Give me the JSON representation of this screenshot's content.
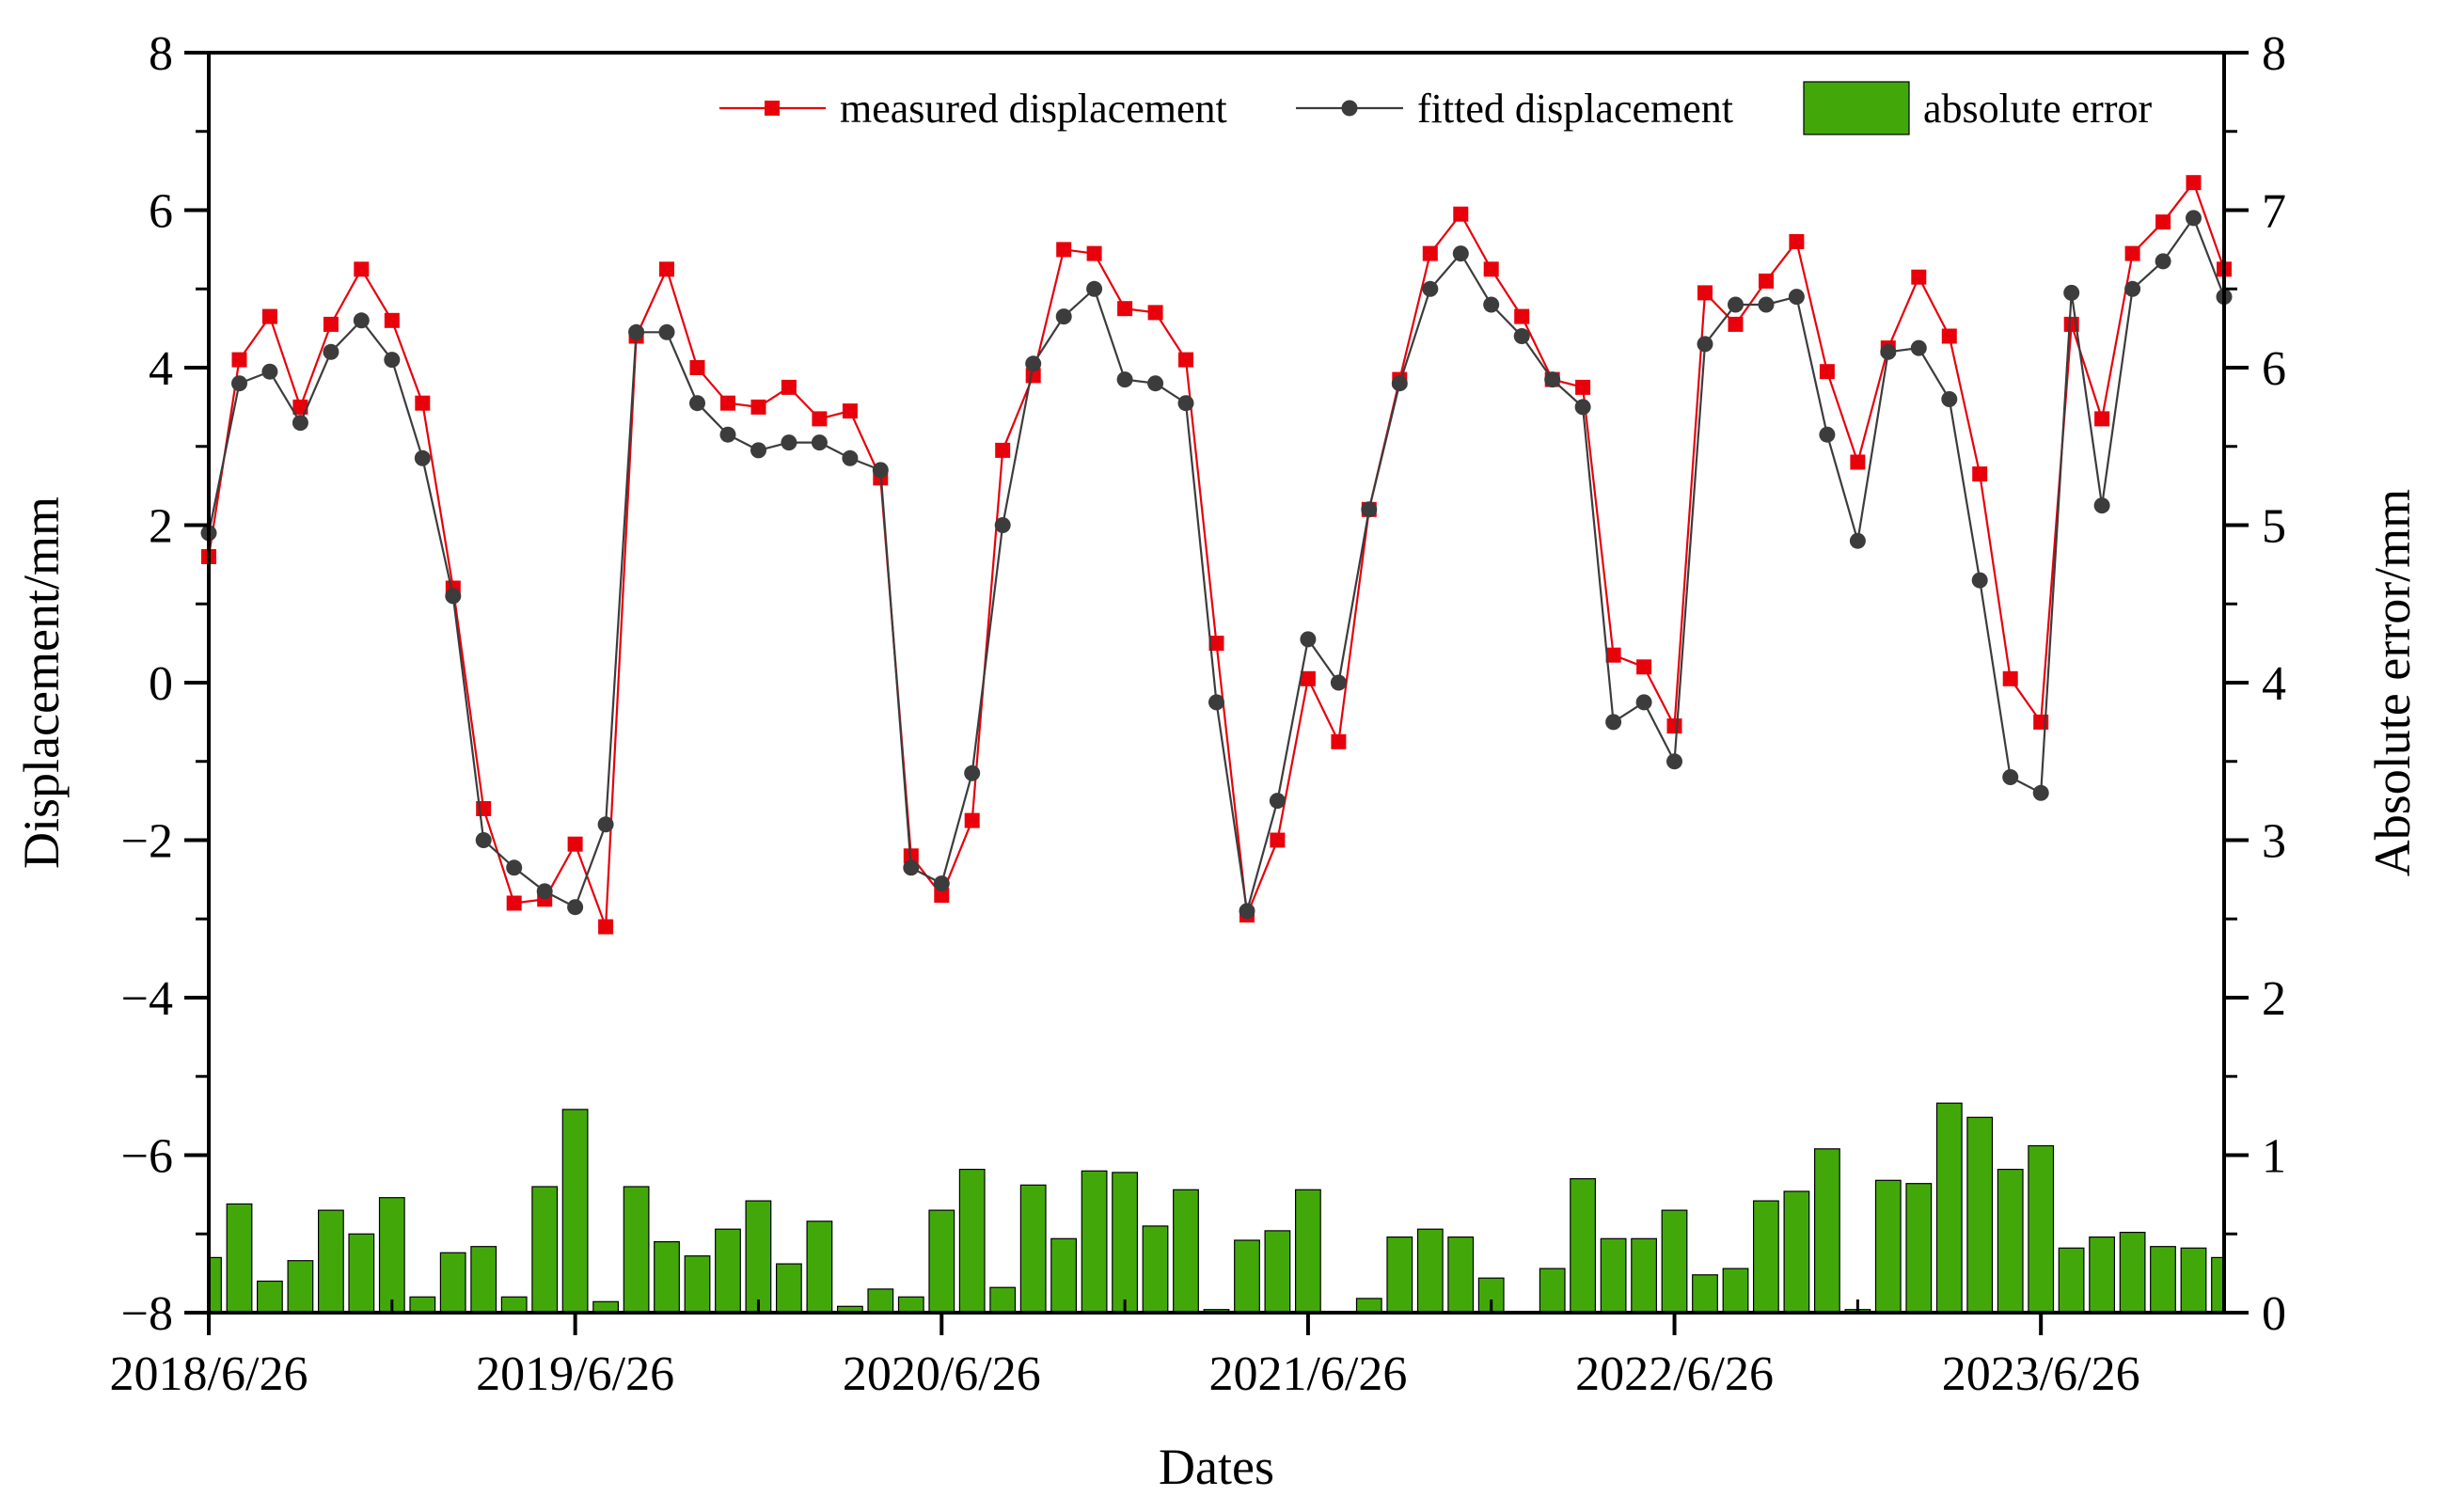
{
  "chart_data": {
    "type": "line+bar",
    "xlabel": "Dates",
    "ylabel_left": "Displacement/mm",
    "ylabel_right": "Absolute error/mm",
    "ylim_left": [
      -8,
      8
    ],
    "ylim_right": [
      0,
      8
    ],
    "yticks_left": [
      -8,
      -6,
      -4,
      -2,
      0,
      2,
      4,
      6,
      8
    ],
    "yticks_right": [
      0,
      1,
      2,
      3,
      4,
      5,
      6,
      7,
      8
    ],
    "yticks_left_labels": [
      "−8",
      "−6",
      "−4",
      "−2",
      "0",
      "2",
      "4",
      "6",
      "8"
    ],
    "yticks_right_labels": [
      "0",
      "1",
      "2",
      "3",
      "4",
      "5",
      "6",
      "7",
      "8"
    ],
    "x_tick_labels": [
      "2018/6/26",
      "2019/6/26",
      "2020/6/26",
      "2021/6/26",
      "2022/6/26",
      "2023/6/26"
    ],
    "x_tick_index": [
      0,
      12,
      24,
      36,
      48,
      60
    ],
    "n_points": 67,
    "legend": {
      "position": "top-right",
      "measured": "measured displacement",
      "fitted": "fitted displacement",
      "error": "absolute error"
    },
    "colors": {
      "measured": "#e8000b",
      "fitted": "#3c3c3c",
      "error_fill": "#42a80a",
      "error_stroke": "#000000"
    },
    "series": [
      {
        "name": "measured displacement",
        "values": [
          1.6,
          4.1,
          4.65,
          3.5,
          4.55,
          5.25,
          4.6,
          3.55,
          1.2,
          -1.6,
          -2.8,
          -2.75,
          -2.05,
          -3.1,
          4.4,
          5.25,
          4.0,
          3.55,
          3.5,
          3.75,
          3.35,
          3.45,
          2.6,
          -2.2,
          -2.7,
          -1.75,
          2.95,
          3.9,
          5.5,
          5.45,
          4.75,
          4.7,
          4.1,
          0.5,
          -2.95,
          -2.0,
          0.05,
          -0.75,
          2.2,
          3.85,
          5.45,
          5.95,
          5.25,
          4.65,
          3.85,
          3.75,
          0.35,
          0.2,
          -0.55,
          4.95,
          4.55,
          5.1,
          5.6,
          3.95,
          2.8,
          4.25,
          5.15,
          4.4,
          2.65,
          0.05,
          -0.5,
          4.55,
          3.35,
          5.45,
          5.85,
          6.35,
          5.25
        ]
      },
      {
        "name": "fitted displacement",
        "values": [
          1.9,
          3.8,
          3.95,
          3.3,
          4.2,
          4.6,
          4.1,
          2.85,
          1.1,
          -2.0,
          -2.35,
          -2.65,
          -2.85,
          -1.8,
          4.45,
          4.45,
          3.55,
          3.15,
          2.95,
          3.05,
          3.05,
          2.85,
          2.7,
          -2.35,
          -2.55,
          -1.15,
          2.0,
          4.05,
          4.65,
          5.0,
          3.85,
          3.8,
          3.55,
          -0.25,
          -2.9,
          -1.5,
          0.55,
          0.0,
          2.2,
          3.8,
          5.0,
          5.45,
          4.8,
          4.4,
          3.85,
          3.5,
          -0.5,
          -0.25,
          -1.0,
          4.3,
          4.8,
          4.8,
          4.9,
          3.15,
          1.8,
          4.2,
          4.25,
          3.6,
          1.3,
          -1.2,
          -1.4,
          4.95,
          2.25,
          5.0,
          5.35,
          5.9,
          4.9
        ]
      },
      {
        "name": "absolute error",
        "values": [
          0.35,
          0.69,
          0.2,
          0.33,
          0.65,
          0.5,
          0.73,
          0.1,
          0.38,
          0.42,
          0.1,
          0.8,
          1.29,
          0.07,
          0.8,
          0.45,
          0.36,
          0.53,
          0.71,
          0.31,
          0.58,
          0.04,
          0.15,
          0.1,
          0.65,
          0.91,
          0.16,
          0.81,
          0.47,
          0.9,
          0.89,
          0.55,
          0.78,
          0.02,
          0.46,
          0.52,
          0.78,
          0.0,
          0.09,
          0.48,
          0.53,
          0.48,
          0.22,
          0.0,
          0.28,
          0.85,
          0.47,
          0.47,
          0.65,
          0.24,
          0.28,
          0.71,
          0.77,
          1.04,
          0.02,
          0.84,
          0.82,
          1.33,
          1.24,
          0.91,
          1.06,
          0.41,
          0.48,
          0.51,
          0.42,
          0.41,
          0.35
        ]
      }
    ]
  }
}
